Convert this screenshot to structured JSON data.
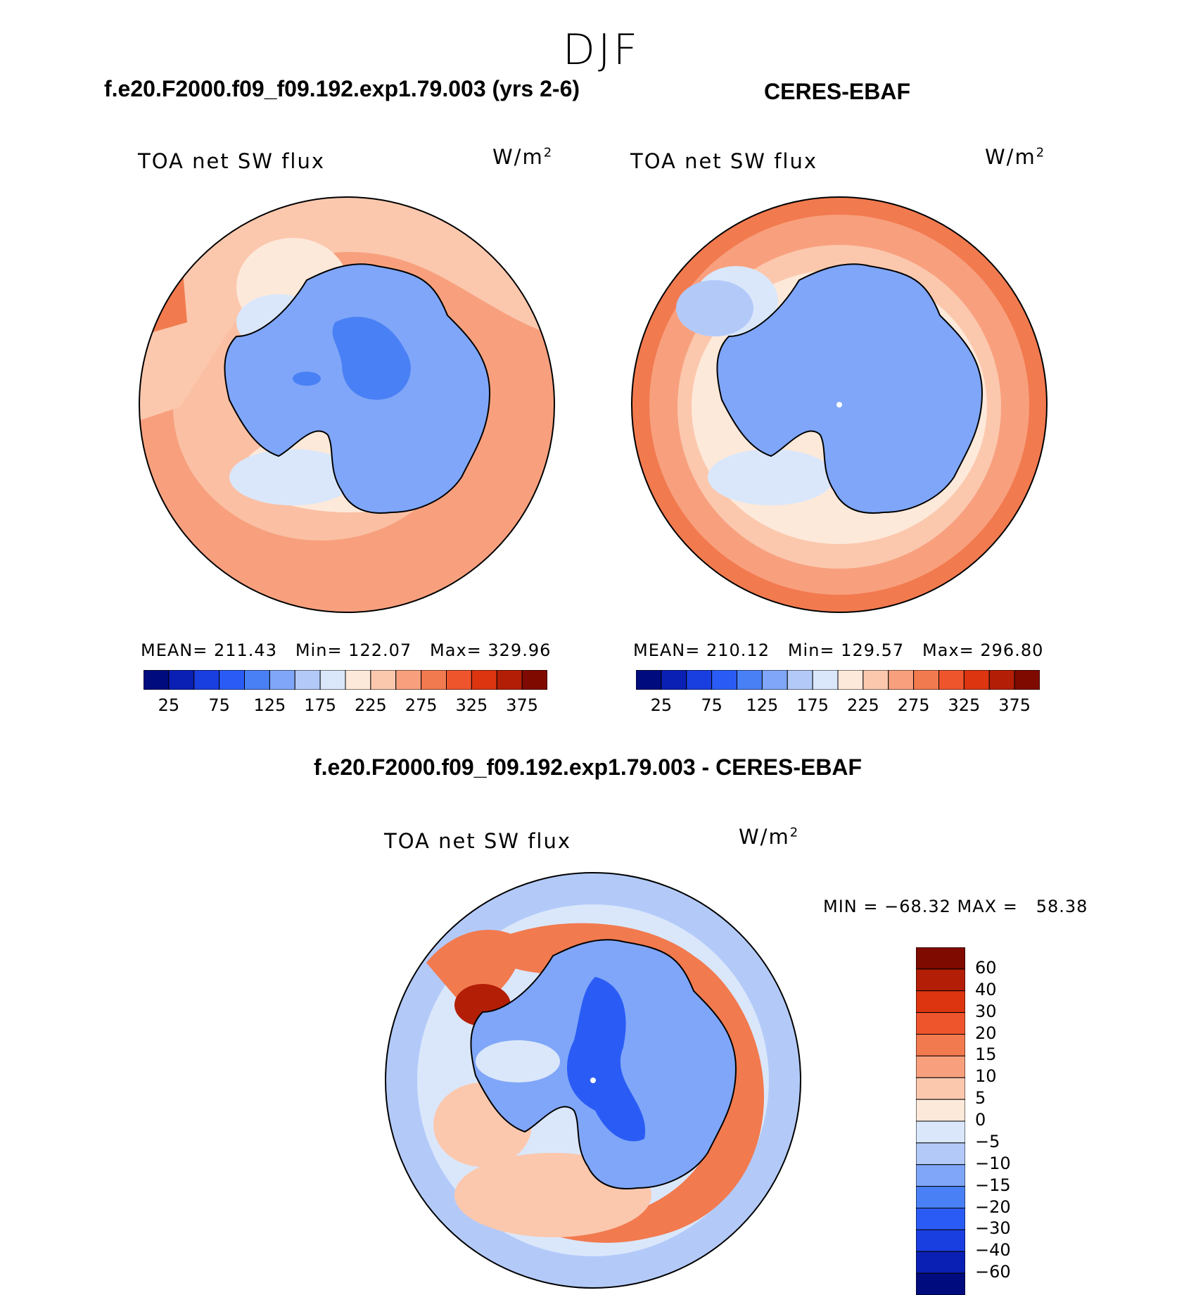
{
  "figure": {
    "season": "DJF"
  },
  "panels": [
    {
      "id": "model",
      "title": "f.e20.F2000.f09_f09.192.exp1.79.003 (yrs 2-6)",
      "variable": "TOA net SW flux",
      "units": "W/m",
      "units_exp": "2",
      "stats_text": "MEAN= 211.43   Min= 122.07   Max= 329.96",
      "colorbar_labels": [
        "25",
        "75",
        "125",
        "175",
        "225",
        "275",
        "325",
        "375"
      ]
    },
    {
      "id": "obs",
      "title": "CERES-EBAF",
      "variable": "TOA net SW flux",
      "units": "W/m",
      "units_exp": "2",
      "stats_text": "MEAN= 210.12   Min= 129.57   Max= 296.80",
      "colorbar_labels": [
        "25",
        "75",
        "125",
        "175",
        "225",
        "275",
        "325",
        "375"
      ]
    },
    {
      "id": "diff",
      "title": "f.e20.F2000.f09_f09.192.exp1.79.003 - CERES-EBAF",
      "variable": "TOA net SW flux",
      "units": "W/m",
      "units_exp": "2",
      "stats_text": "MIN = −68.32 MAX =   58.38",
      "colorbar_labels": [
        "60",
        "40",
        "30",
        "20",
        "15",
        "10",
        "5",
        "0",
        "−5",
        "−10",
        "−15",
        "−20",
        "−30",
        "−40",
        "−60"
      ]
    }
  ],
  "colors": {
    "sequential": [
      "#000c7d",
      "#0a1fb3",
      "#1a3fe0",
      "#2a5cf5",
      "#4a80f5",
      "#7fa6f8",
      "#b3caf9",
      "#dae7fb",
      "#fde9da",
      "#fbc8ae",
      "#f8a07e",
      "#f27a4f",
      "#ef552d",
      "#dc3510",
      "#b31e06",
      "#7f0a00"
    ],
    "diverging": [
      "#000c7d",
      "#0a1fb3",
      "#1a3fe0",
      "#2a5cf5",
      "#4a80f5",
      "#7fa6f8",
      "#b3caf9",
      "#dae7fb",
      "#fde9da",
      "#fbc8ae",
      "#f8a07e",
      "#f27a4f",
      "#ef552d",
      "#dc3510",
      "#b31e06",
      "#7f0a00"
    ]
  },
  "map": {
    "projection": "south-polar-stereographic",
    "region": "Antarctica"
  }
}
